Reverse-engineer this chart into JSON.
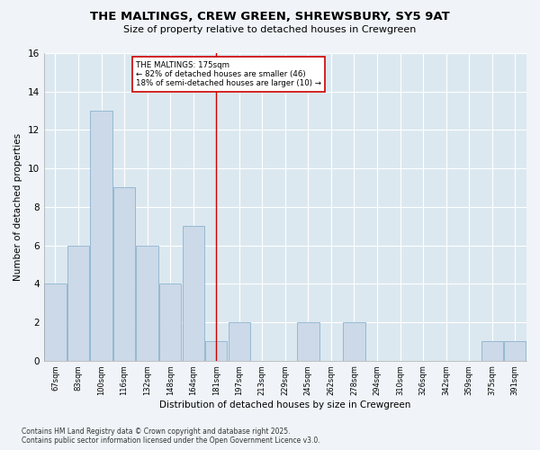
{
  "title1": "THE MALTINGS, CREW GREEN, SHREWSBURY, SY5 9AT",
  "title2": "Size of property relative to detached houses in Crewgreen",
  "xlabel": "Distribution of detached houses by size in Crewgreen",
  "ylabel": "Number of detached properties",
  "categories": [
    "67sqm",
    "83sqm",
    "100sqm",
    "116sqm",
    "132sqm",
    "148sqm",
    "164sqm",
    "181sqm",
    "197sqm",
    "213sqm",
    "229sqm",
    "245sqm",
    "262sqm",
    "278sqm",
    "294sqm",
    "310sqm",
    "326sqm",
    "342sqm",
    "359sqm",
    "375sqm",
    "391sqm"
  ],
  "values": [
    4,
    6,
    13,
    9,
    6,
    4,
    7,
    1,
    2,
    0,
    0,
    2,
    0,
    2,
    0,
    0,
    0,
    0,
    0,
    1,
    1
  ],
  "bar_color": "#ccd9e8",
  "bar_edge_color": "#7aaac8",
  "highlight_index": 7,
  "highlight_line_color": "#cc0000",
  "annotation_text": "THE MALTINGS: 175sqm\n← 82% of detached houses are smaller (46)\n18% of semi-detached houses are larger (10) →",
  "annotation_box_color": "#ffffff",
  "annotation_box_edge": "#cc0000",
  "ylim": [
    0,
    16
  ],
  "yticks": [
    0,
    2,
    4,
    6,
    8,
    10,
    12,
    14,
    16
  ],
  "plot_bg_color": "#dce8f0",
  "fig_bg_color": "#f0f4f8",
  "grid_color": "#ffffff",
  "footer_line1": "Contains HM Land Registry data © Crown copyright and database right 2025.",
  "footer_line2": "Contains public sector information licensed under the Open Government Licence v3.0."
}
